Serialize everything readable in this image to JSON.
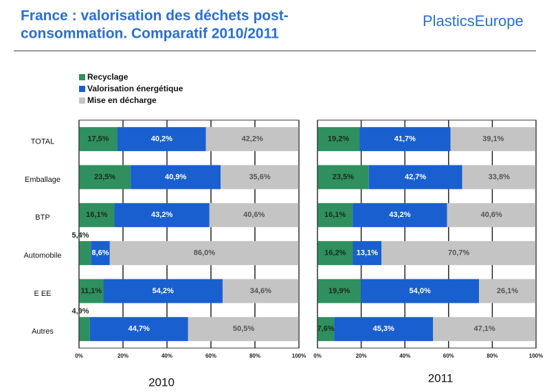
{
  "header": {
    "title": [
      "France : valorisation des déchets post-",
      "consommation. Comparatif 2010/2011"
    ],
    "logo": "PlasticsEurope"
  },
  "chart_data": [
    {
      "type": "stacked-barh",
      "xlabel": "2010",
      "categories": [
        "TOTAL",
        "Emballage",
        "BTP",
        "Automobile",
        "E EE",
        "Autres"
      ],
      "xlim": [
        0,
        100
      ],
      "xticks": [
        {
          "value": 0,
          "label": "0%"
        },
        {
          "value": 20,
          "label": "20%"
        },
        {
          "value": 40,
          "label": "40%"
        },
        {
          "value": 60,
          "label": "60%"
        },
        {
          "value": 80,
          "label": "80%"
        },
        {
          "value": 100,
          "label": "100%"
        }
      ],
      "grid": true,
      "series": [
        {
          "name": "Recyclage",
          "color": "#2f8f5f",
          "values": [
            17.5,
            23.5,
            16.1,
            5.4,
            11.1,
            4.9
          ],
          "value_labels": [
            "17,5%",
            "23,5%",
            "16,1%",
            "5,4%",
            "11,1%",
            "4,9%"
          ]
        },
        {
          "name": "Valorisation énergétique",
          "color": "#1a5fd0",
          "values": [
            40.2,
            40.9,
            43.2,
            8.6,
            54.2,
            44.7
          ],
          "value_labels": [
            "40,2%",
            "40,9%",
            "43,2%",
            "8,6%",
            "54,2%",
            "44,7%"
          ]
        },
        {
          "name": "Mise en décharge",
          "color": "#c4c4c4",
          "values": [
            42.2,
            35.6,
            40.6,
            86.0,
            34.6,
            50.5
          ],
          "value_labels": [
            "42,2%",
            "35,6%",
            "40,6%",
            "86,0%",
            "34,6%",
            "50,5%"
          ]
        }
      ]
    },
    {
      "type": "stacked-barh",
      "xlabel": "2011",
      "xlim": [
        0,
        100
      ],
      "xticks": [
        {
          "value": 0,
          "label": "0%"
        },
        {
          "value": 20,
          "label": "20%"
        },
        {
          "value": 40,
          "label": "40%"
        },
        {
          "value": 60,
          "label": "60%"
        },
        {
          "value": 80,
          "label": "80%"
        },
        {
          "value": 100,
          "label": "100%"
        }
      ],
      "grid": true,
      "series": [
        {
          "color": "#2f8f5f",
          "values": [
            19.2,
            23.5,
            16.1,
            16.2,
            19.9,
            7.6
          ],
          "value_labels": [
            "19,2%",
            "23,5%",
            "16,1%",
            "16,2%",
            "19,9%",
            "7,6%"
          ]
        },
        {
          "color": "#1a5fd0",
          "values": [
            41.7,
            42.7,
            43.2,
            13.1,
            54.0,
            45.3
          ],
          "value_labels": [
            "41,7%",
            "42,7%",
            "43,2%",
            "13,1%",
            "54,0%",
            "45,3%"
          ]
        },
        {
          "color": "#c4c4c4",
          "values": [
            39.1,
            33.8,
            40.6,
            70.7,
            26.1,
            47.1
          ],
          "value_labels": [
            "39,1%",
            "33,8%",
            "40,6%",
            "70,7%",
            "26,1%",
            "47,1%"
          ]
        }
      ]
    }
  ]
}
